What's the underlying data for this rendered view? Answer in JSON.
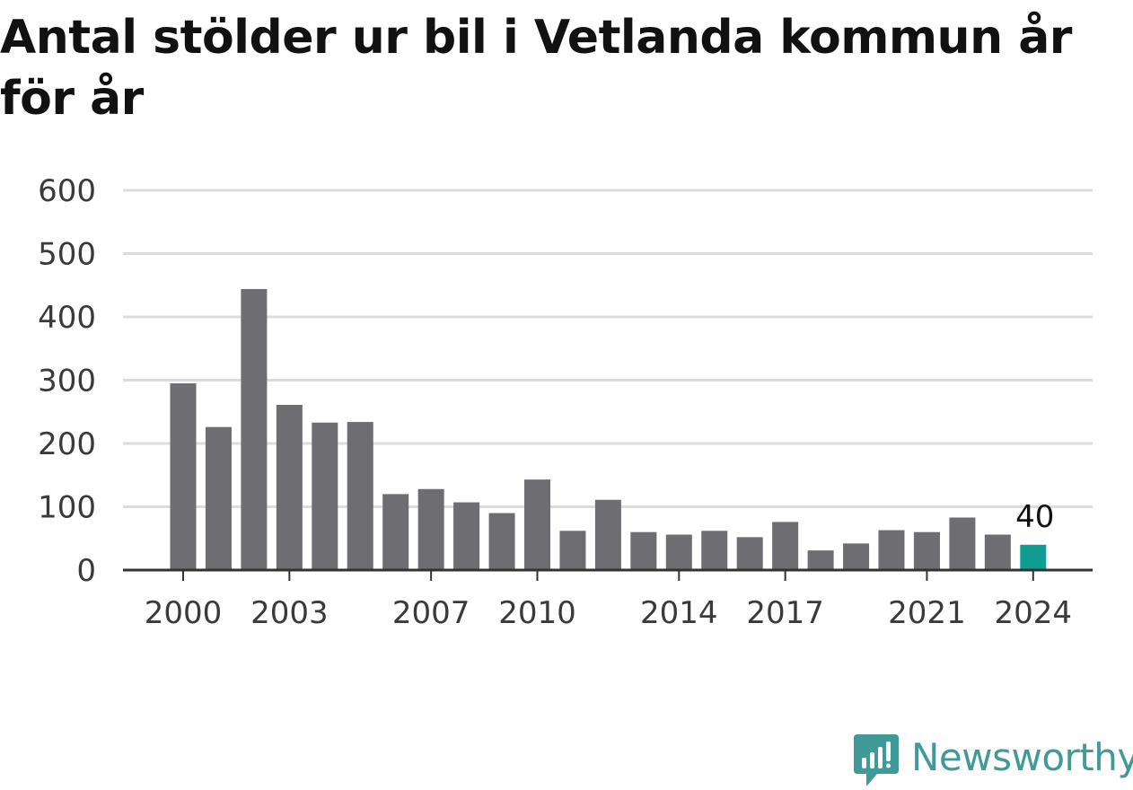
{
  "colors": {
    "bar": "#6e6d72",
    "highlight": "#0e9e94",
    "grid": "#dcdcdc",
    "axis": "#333333",
    "brand": "#3f9a98"
  },
  "brand": {
    "name": "Newsworthy",
    "icon": "newsworthy-logo-icon"
  },
  "chart_data": {
    "type": "bar",
    "title": "Antal stölder ur bil i Vetlanda kommun år för år",
    "xlabel": "",
    "ylabel": "",
    "ylim": [
      0,
      600
    ],
    "yticks": [
      "0",
      "100",
      "200",
      "300",
      "400",
      "500",
      "600"
    ],
    "grid": true,
    "legend": "none",
    "categories": [
      "2000",
      "2001",
      "2002",
      "2003",
      "2004",
      "2005",
      "2006",
      "2007",
      "2008",
      "2009",
      "2010",
      "2011",
      "2012",
      "2013",
      "2014",
      "2015",
      "2016",
      "2017",
      "2018",
      "2019",
      "2020",
      "2021",
      "2022",
      "2023",
      "2024"
    ],
    "values": [
      295,
      226,
      444,
      261,
      233,
      234,
      120,
      128,
      107,
      90,
      143,
      62,
      111,
      60,
      56,
      62,
      52,
      76,
      31,
      42,
      63,
      60,
      83,
      56,
      40
    ],
    "xtick_labels": [
      "2000",
      "2003",
      "2007",
      "2010",
      "2014",
      "2017",
      "2021",
      "2024"
    ],
    "highlight_category": "2024",
    "annotation": "40"
  }
}
